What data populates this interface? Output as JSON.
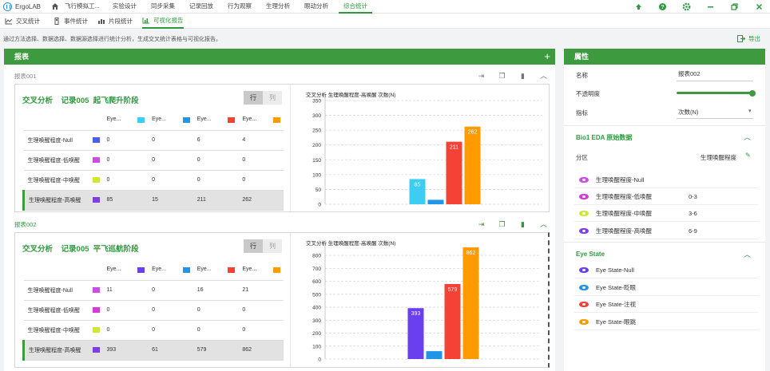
{
  "app": {
    "name": "ErgoLAB"
  },
  "main_tabs": [
    {
      "label": "飞行模拟工..."
    },
    {
      "label": "实验设计"
    },
    {
      "label": "同步采集"
    },
    {
      "label": "记录回放"
    },
    {
      "label": "行为观察"
    },
    {
      "label": "生理分析"
    },
    {
      "label": "眼动分析"
    },
    {
      "label": "综合统计"
    }
  ],
  "sub_tabs": [
    {
      "label": "交叉统计"
    },
    {
      "label": "事件统计"
    },
    {
      "label": "片段统计"
    },
    {
      "label": "可视化报告"
    }
  ],
  "description": "通过方法选择、数据选择、数据源选择进行统计分析，生成交叉统计表格与可视化报告。",
  "export_label": "导出",
  "report_panel": {
    "title": "报表",
    "add_icon": "+"
  },
  "reports": [
    {
      "name": "报表001",
      "title": "交叉分析    记录005  起飞爬升阶段",
      "row_label": "行",
      "col_label": "列",
      "headers": [
        "Eye...",
        "Eye...",
        "Eye...",
        "Eye..."
      ],
      "header_colors": [
        "#3dcdf2",
        "#2196e8",
        "#f44336",
        "#ff9a00"
      ],
      "rows": [
        {
          "label": "生理唤醒程度-Null",
          "color": "#4a62d8",
          "values": [
            "0",
            "0",
            "6",
            "4"
          ]
        },
        {
          "label": "生理唤醒程度-低唤醒",
          "color": "#c94fe0",
          "values": [
            "0",
            "0",
            "0",
            "0"
          ]
        },
        {
          "label": "生理唤醒程度-中唤醒",
          "color": "#cde83a",
          "values": [
            "0",
            "0",
            "0",
            "0"
          ]
        },
        {
          "label": "生理唤醒程度-高唤醒",
          "color": "#7b3fe4",
          "values": [
            "85",
            "15",
            "211",
            "262"
          ]
        }
      ],
      "chart_data": {
        "type": "bar",
        "title": "交叉分析 生理唤醒程度-高唤醒 次数(N)",
        "categories": [
          "Eye...",
          "Eye...",
          "Eye...",
          "Eye..."
        ],
        "values": [
          85,
          15,
          211,
          262
        ],
        "colors": [
          "#3dcdf2",
          "#2196e8",
          "#f44336",
          "#ff9a00"
        ],
        "ylim": [
          0,
          350
        ],
        "yticks": [
          0,
          50,
          100,
          150,
          200,
          250,
          300,
          350
        ],
        "grid": true
      }
    },
    {
      "name": "报表002",
      "title": "交叉分析    记录005  平飞巡航阶段",
      "row_label": "行",
      "col_label": "列",
      "headers": [
        "Eye...",
        "Eye...",
        "Eye...",
        "Eye..."
      ],
      "header_colors": [
        "#6a3ff0",
        "#2196e8",
        "#f44336",
        "#ff9a00"
      ],
      "rows": [
        {
          "label": "生理唤醒程度-Null",
          "color": "#c94fe0",
          "values": [
            "11",
            "0",
            "16",
            "21"
          ]
        },
        {
          "label": "生理唤醒程度-低唤醒",
          "color": "#d63bd6",
          "values": [
            "0",
            "0",
            "0",
            "0"
          ]
        },
        {
          "label": "生理唤醒程度-中唤醒",
          "color": "#cde83a",
          "values": [
            "0",
            "0",
            "0",
            "0"
          ]
        },
        {
          "label": "生理唤醒程度-高唤醒",
          "color": "#7b3fe4",
          "values": [
            "393",
            "61",
            "579",
            "862"
          ]
        }
      ],
      "chart_data": {
        "type": "bar",
        "title": "交叉分析 生理唤醒程度-高唤醒 次数(N)",
        "categories": [
          "Eye...",
          "Eye...",
          "Eye...",
          "Eye..."
        ],
        "values": [
          393,
          61,
          579,
          862
        ],
        "colors": [
          "#6a3ff0",
          "#2196e8",
          "#f44336",
          "#ff9a00"
        ],
        "ylim": [
          0,
          850
        ],
        "yticks": [
          0,
          100,
          200,
          300,
          400,
          500,
          600,
          700,
          800
        ],
        "grid": true
      }
    }
  ],
  "properties": {
    "title": "属性",
    "name_label": "名称",
    "name_value": "报表002",
    "opacity_label": "不透明度",
    "opacity_value": 1.0,
    "metric_label": "指标",
    "metric_value": "次数(N)",
    "bio_section": "Bio1 EDA 原始数据",
    "partition_label": "分区",
    "partition_value": "生理唤醒程度",
    "bio_items": [
      {
        "label": "生理唤醒程度-Null",
        "range": "",
        "color": "#c94fe0"
      },
      {
        "label": "生理唤醒程度-低唤醒",
        "range": "0-3",
        "color": "#d63bd6"
      },
      {
        "label": "生理唤醒程度-中唤醒",
        "range": "3-6",
        "color": "#cde83a"
      },
      {
        "label": "生理唤醒程度-高唤醒",
        "range": "6-9",
        "color": "#7b3fe4"
      }
    ],
    "eye_section": "Eye State",
    "eye_items": [
      {
        "label": "Eye State-Null",
        "color": "#6a3ff0"
      },
      {
        "label": "Eye State-眨眼",
        "color": "#2196e8"
      },
      {
        "label": "Eye State-注视",
        "color": "#f44336"
      },
      {
        "label": "Eye State-眼跳",
        "color": "#ff9a00"
      }
    ]
  }
}
